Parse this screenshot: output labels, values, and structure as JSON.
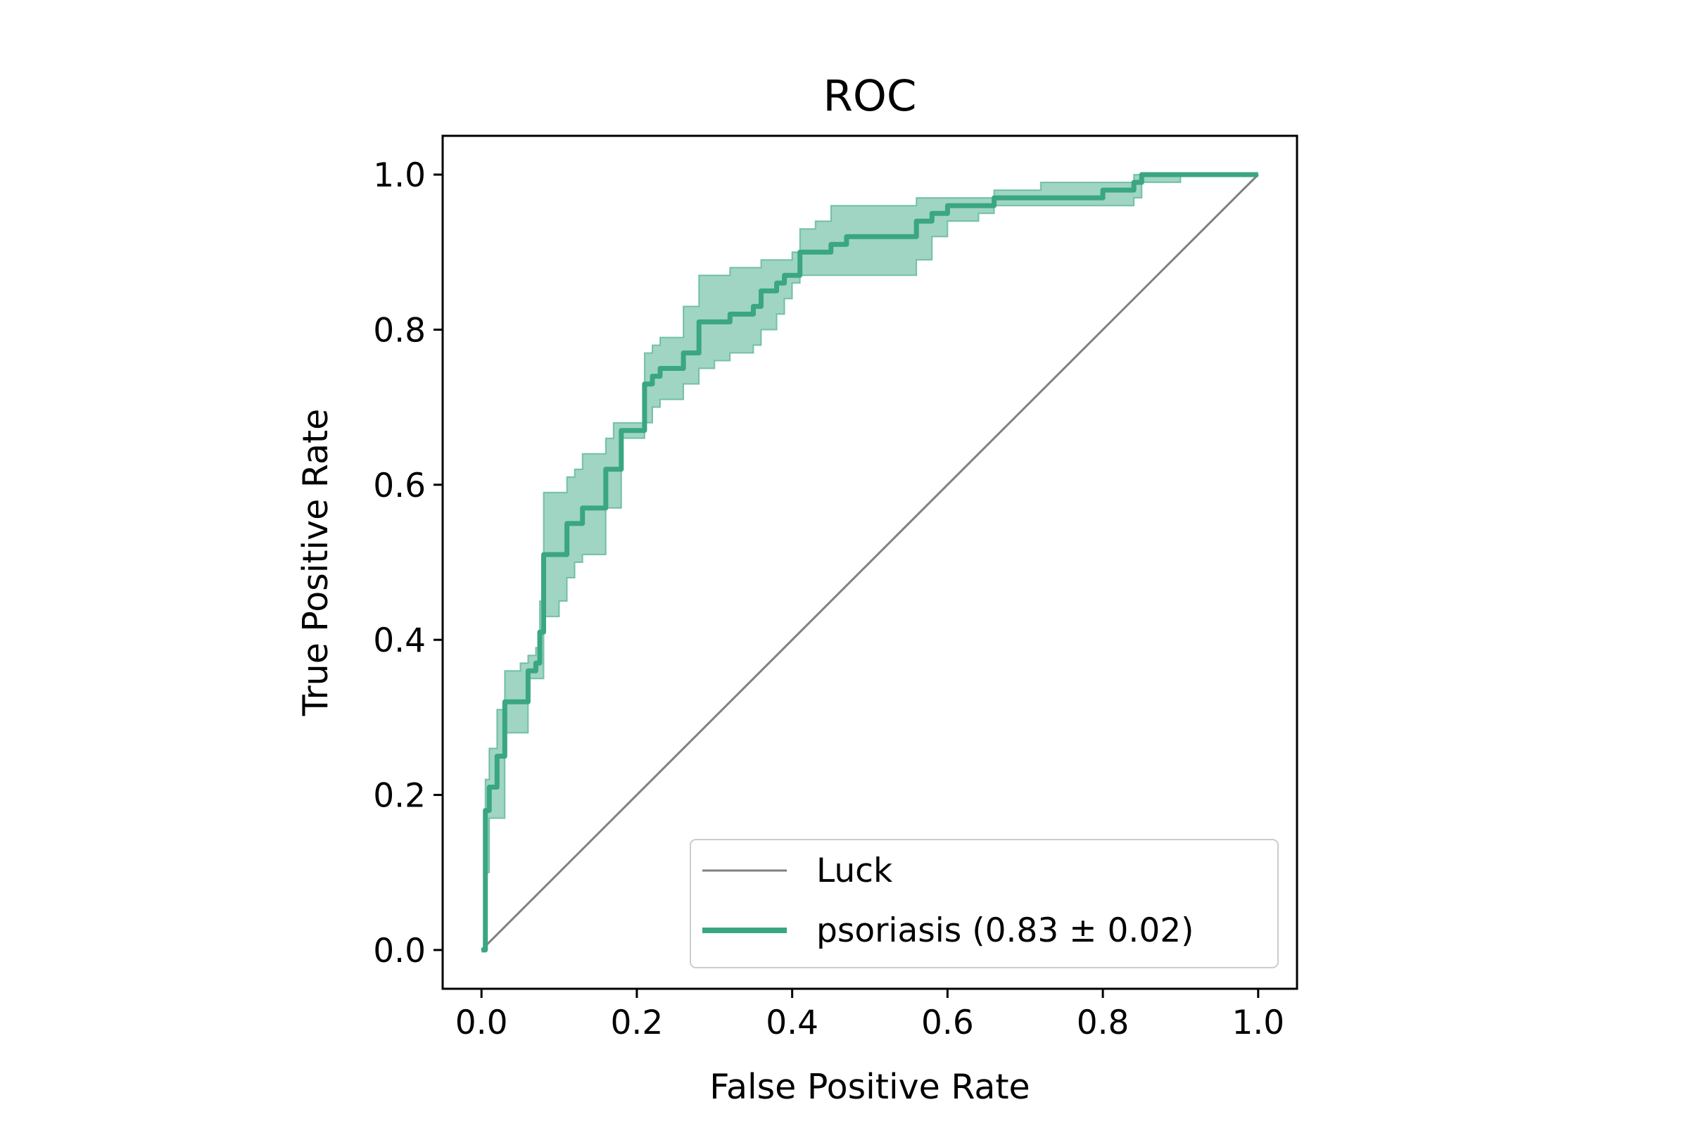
{
  "chart_data": {
    "type": "line",
    "title": "ROC",
    "xlabel": "False Positive Rate",
    "ylabel": "True Positive Rate",
    "xlim": [
      -0.05,
      1.05
    ],
    "ylim": [
      -0.05,
      1.05
    ],
    "xticks": [
      0.0,
      0.2,
      0.4,
      0.6,
      0.8,
      1.0
    ],
    "yticks": [
      0.0,
      0.2,
      0.4,
      0.6,
      0.8,
      1.0
    ],
    "xtick_labels": [
      "0.0",
      "0.2",
      "0.4",
      "0.6",
      "0.8",
      "1.0"
    ],
    "ytick_labels": [
      "0.0",
      "0.2",
      "0.4",
      "0.6",
      "0.8",
      "1.0"
    ],
    "grid": false,
    "legend_position": "lower-right",
    "series": [
      {
        "name": "Luck",
        "kind": "line",
        "color": "#808080",
        "x": [
          0.0,
          1.0
        ],
        "y": [
          0.0,
          1.0
        ]
      },
      {
        "name": "psoriasis (0.83 ± 0.02)",
        "kind": "line_with_band",
        "color": "#3aa683",
        "band_color": "#8fceb8",
        "x": [
          0.0,
          0.005,
          0.01,
          0.02,
          0.03,
          0.05,
          0.06,
          0.07,
          0.075,
          0.08,
          0.1,
          0.11,
          0.12,
          0.13,
          0.15,
          0.16,
          0.17,
          0.18,
          0.2,
          0.21,
          0.22,
          0.23,
          0.25,
          0.26,
          0.28,
          0.3,
          0.32,
          0.33,
          0.35,
          0.36,
          0.38,
          0.39,
          0.4,
          0.41,
          0.43,
          0.45,
          0.47,
          0.55,
          0.56,
          0.58,
          0.6,
          0.64,
          0.66,
          0.72,
          0.8,
          0.84,
          0.85,
          0.9,
          1.0
        ],
        "y": [
          0.0,
          0.18,
          0.21,
          0.25,
          0.32,
          0.32,
          0.36,
          0.37,
          0.41,
          0.51,
          0.51,
          0.55,
          0.55,
          0.57,
          0.57,
          0.62,
          0.62,
          0.67,
          0.67,
          0.73,
          0.74,
          0.75,
          0.75,
          0.77,
          0.81,
          0.81,
          0.82,
          0.82,
          0.83,
          0.85,
          0.86,
          0.87,
          0.87,
          0.9,
          0.9,
          0.91,
          0.92,
          0.92,
          0.94,
          0.95,
          0.96,
          0.96,
          0.97,
          0.97,
          0.98,
          0.99,
          1.0,
          1.0,
          1.0
        ],
        "lower": [
          0.0,
          0.1,
          0.17,
          0.17,
          0.28,
          0.28,
          0.35,
          0.35,
          0.35,
          0.43,
          0.45,
          0.48,
          0.5,
          0.51,
          0.51,
          0.57,
          0.57,
          0.66,
          0.66,
          0.68,
          0.7,
          0.71,
          0.71,
          0.73,
          0.75,
          0.76,
          0.77,
          0.77,
          0.78,
          0.8,
          0.82,
          0.84,
          0.86,
          0.87,
          0.87,
          0.87,
          0.87,
          0.87,
          0.89,
          0.92,
          0.94,
          0.95,
          0.96,
          0.96,
          0.96,
          0.97,
          0.99,
          1.0,
          1.0
        ],
        "upper": [
          0.0,
          0.22,
          0.26,
          0.31,
          0.36,
          0.37,
          0.38,
          0.39,
          0.45,
          0.59,
          0.59,
          0.61,
          0.62,
          0.64,
          0.64,
          0.66,
          0.68,
          0.68,
          0.68,
          0.77,
          0.78,
          0.79,
          0.79,
          0.83,
          0.87,
          0.87,
          0.88,
          0.88,
          0.88,
          0.89,
          0.89,
          0.89,
          0.9,
          0.93,
          0.94,
          0.96,
          0.96,
          0.96,
          0.97,
          0.97,
          0.97,
          0.97,
          0.98,
          0.99,
          0.99,
          1.0,
          1.0,
          1.0,
          1.0
        ]
      }
    ]
  }
}
